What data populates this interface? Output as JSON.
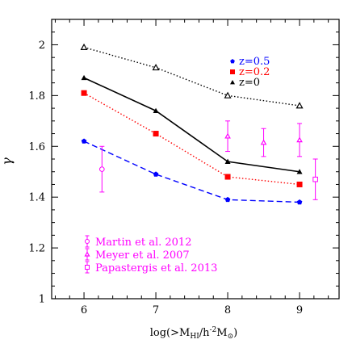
{
  "chart_data": {
    "type": "line",
    "xlabel_main": "log(>M",
    "xlabel_sub1": "HI",
    "xlabel_mid": "/h",
    "xlabel_sup": "-2",
    "xlabel_end": "M",
    "xlabel_sub2": "⊙",
    "xlabel_close": ")",
    "ylabel": "γ",
    "xlim": [
      5.55,
      9.55
    ],
    "ylim": [
      1.0,
      2.1
    ],
    "xticks": [
      6,
      7,
      8,
      9
    ],
    "xtick_labels": [
      "6",
      "7",
      "8",
      "9"
    ],
    "yticks": [
      1.0,
      1.2,
      1.4,
      1.6,
      1.8,
      2.0
    ],
    "ytick_labels": [
      "1",
      "1.2",
      "1.4",
      "1.6",
      "1.8",
      "2"
    ],
    "series": [
      {
        "name": "z=0.5",
        "x": [
          6,
          7,
          8,
          9
        ],
        "y": [
          1.62,
          1.49,
          1.39,
          1.38
        ],
        "color": "#0000ff",
        "line": "dashed",
        "marker": "pentagon"
      },
      {
        "name": "z=0.2",
        "x": [
          6,
          7,
          8,
          9
        ],
        "y": [
          1.81,
          1.65,
          1.48,
          1.45
        ],
        "color": "#ff0000",
        "line": "dotted",
        "marker": "square"
      },
      {
        "name": "z=0",
        "x": [
          6,
          7,
          8,
          9
        ],
        "y": [
          1.87,
          1.74,
          1.54,
          1.5
        ],
        "color": "#000000",
        "line": "solid",
        "marker": "triangle"
      },
      {
        "name": "",
        "x": [
          6,
          7,
          8,
          9
        ],
        "y": [
          1.99,
          1.91,
          1.8,
          1.76
        ],
        "color": "#000000",
        "line": "dotted",
        "marker": "open-triangle"
      }
    ],
    "legend_series": [
      "z=0.5",
      "z=0.2",
      "z=0"
    ],
    "observations": [
      {
        "name": "Martin et al. 2012",
        "marker": "open-circle",
        "points": [
          {
            "x": 6.25,
            "y": 1.51,
            "ylo": 1.42,
            "yhi": 1.6
          }
        ]
      },
      {
        "name": "Meyer et al. 2007",
        "marker": "open-triangle",
        "points": [
          {
            "x": 8.0,
            "y": 1.64,
            "ylo": 1.58,
            "yhi": 1.7
          },
          {
            "x": 8.5,
            "y": 1.615,
            "ylo": 1.56,
            "yhi": 1.67
          },
          {
            "x": 9.0,
            "y": 1.625,
            "ylo": 1.56,
            "yhi": 1.69
          }
        ]
      },
      {
        "name": "Papastergis et al. 2013",
        "marker": "open-square",
        "points": [
          {
            "x": 9.22,
            "y": 1.47,
            "ylo": 1.39,
            "yhi": 1.55
          }
        ]
      }
    ],
    "observation_color": "#ff00ff",
    "legend_placement": "top-right (models), bottom-left (observations)"
  }
}
